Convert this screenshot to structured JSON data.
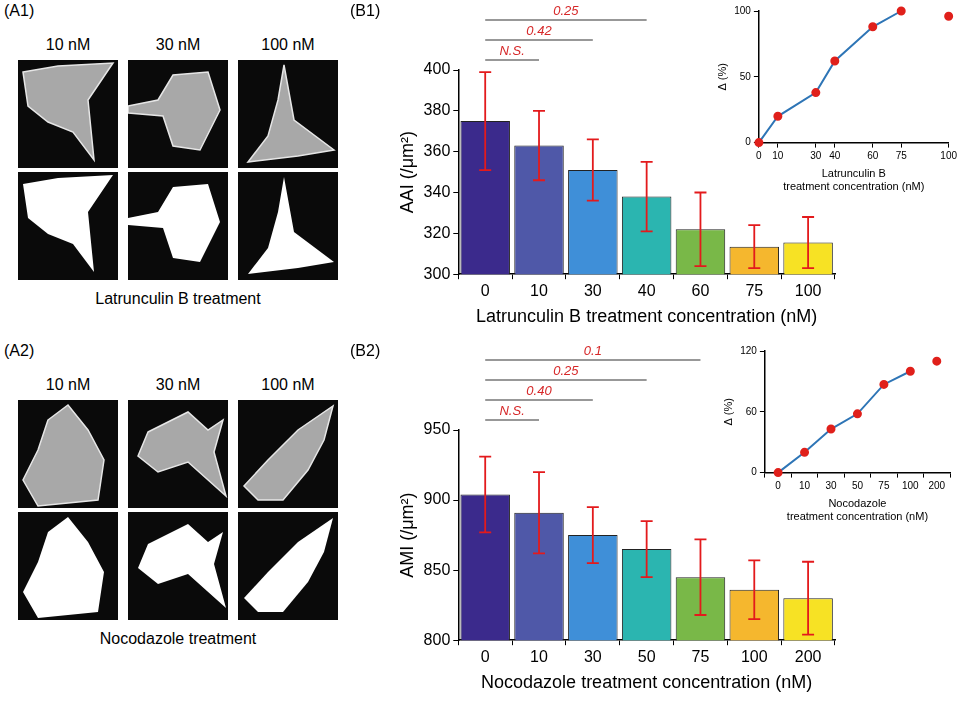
{
  "image_panels": [
    {
      "label": "(A1)",
      "columns": [
        "10 nM",
        "30 nM",
        "100 nM"
      ],
      "caption": "Latrunculin B treatment"
    },
    {
      "label": "(A2)",
      "columns": [
        "10 nM",
        "30 nM",
        "100 nM"
      ],
      "caption": "Nocodazole treatment"
    }
  ],
  "chart_data": [
    {
      "type": "bar",
      "panel": "(B1)",
      "x_label": "Latrunculin B treatment concentration (nM)",
      "y_label": "AAI (/μm²)",
      "categories": [
        "0",
        "10",
        "30",
        "40",
        "60",
        "75",
        "100"
      ],
      "values": [
        375,
        363,
        351,
        338,
        322,
        313.5,
        315.5
      ],
      "errors": [
        24,
        17,
        15,
        17,
        18,
        10.5,
        12.5
      ],
      "colors": [
        "#3b2a8c",
        "#4f58a8",
        "#3f8fd8",
        "#2bb5b0",
        "#79b848",
        "#f5b72e",
        "#f7e224"
      ],
      "ylim": [
        300,
        400
      ],
      "yticks": [
        300,
        320,
        340,
        360,
        380,
        400
      ],
      "grid": false,
      "annotations": [
        {
          "text": "N.S.",
          "from": "0",
          "to": "10"
        },
        {
          "text": "0.42",
          "from": "0",
          "to": "30"
        },
        {
          "text": "0.25",
          "from": "0",
          "to": "40"
        }
      ],
      "inset": {
        "type": "line",
        "x_label": [
          "Latrunculin B",
          "treatment concentration (nM)"
        ],
        "y_label": "Δ (%)",
        "x": [
          0,
          10,
          30,
          40,
          60,
          75,
          100
        ],
        "series": [
          {
            "values": [
              0,
              20,
              38,
              62,
              88,
              100,
              null
            ],
            "color": "#2e75b6",
            "marker": "circle",
            "line_style": "solid"
          },
          {
            "values": [
              null,
              null,
              null,
              null,
              null,
              null,
              96
            ],
            "color": "#e0201b",
            "marker": "circle",
            "line_style": "none"
          }
        ],
        "xlim": [
          0,
          100
        ],
        "xticks": [
          0,
          10,
          30,
          40,
          60,
          75,
          100
        ],
        "ylim": [
          0,
          100
        ],
        "yticks": [
          0,
          50,
          100
        ],
        "grid": false
      }
    },
    {
      "type": "bar",
      "panel": "(B2)",
      "x_label": "Nocodazole treatment concentration (nM)",
      "y_label": "AMI (/μm²)",
      "categories": [
        "0",
        "10",
        "30",
        "50",
        "75",
        "100",
        "200"
      ],
      "values": [
        904,
        891,
        875,
        865,
        845,
        836,
        830
      ],
      "errors": [
        27,
        29,
        20,
        20,
        27,
        21,
        26
      ],
      "colors": [
        "#3b2a8c",
        "#4f58a8",
        "#3f8fd8",
        "#2bb5b0",
        "#79b848",
        "#f5b72e",
        "#f7e224"
      ],
      "ylim": [
        800,
        950
      ],
      "yticks": [
        800,
        850,
        900,
        950
      ],
      "grid": false,
      "annotations": [
        {
          "text": "N.S.",
          "from": "0",
          "to": "10"
        },
        {
          "text": "0.40",
          "from": "0",
          "to": "30"
        },
        {
          "text": "0.25",
          "from": "0",
          "to": "50"
        },
        {
          "text": "0.1",
          "from": "0",
          "to": "75"
        }
      ],
      "inset": {
        "type": "line",
        "x_label": [
          "Nocodazole",
          "treatment concentration (nM)"
        ],
        "y_label": "Δ (%)",
        "categories": [
          "0",
          "10",
          "30",
          "50",
          "75",
          "100",
          "200"
        ],
        "series": [
          {
            "values": [
              0,
              20,
              43,
              58,
              87,
              100,
              null
            ],
            "color": "#2e75b6",
            "marker": "circle",
            "line_style": "solid"
          },
          {
            "values": [
              null,
              null,
              null,
              null,
              null,
              null,
              110
            ],
            "color": "#e0201b",
            "marker": "circle",
            "line_style": "none"
          }
        ],
        "ylim": [
          0,
          120
        ],
        "yticks": [
          0,
          60,
          120
        ],
        "grid": false
      }
    }
  ]
}
